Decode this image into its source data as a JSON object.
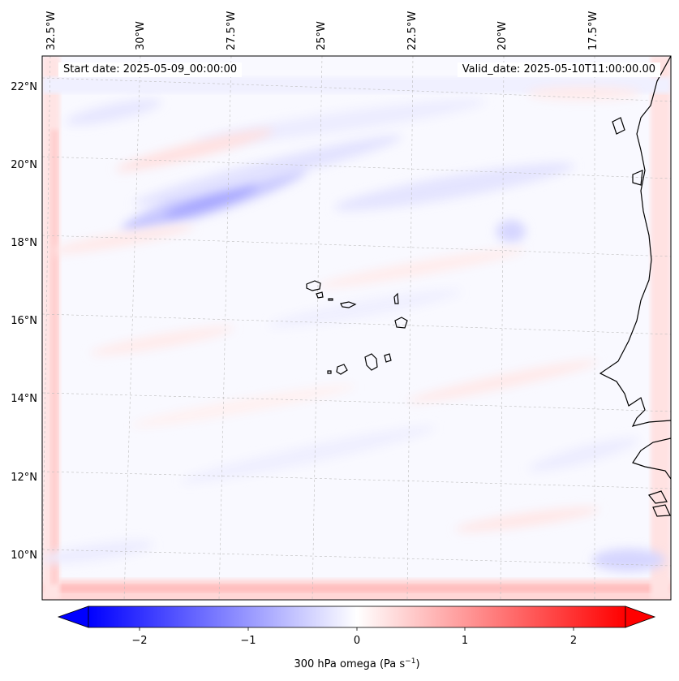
{
  "map": {
    "start_label": "Start date: 2025-05-09_00:00:00",
    "valid_label": "Valid_date: 2025-05-10T11:00:00.00",
    "lon_labels": [
      "32.5°W",
      "30°W",
      "27.5°W",
      "25°W",
      "22.5°W",
      "20°W",
      "17.5°W"
    ],
    "lat_labels": [
      "22°N",
      "20°N",
      "18°N",
      "16°N",
      "14°N",
      "12°N",
      "10°N"
    ],
    "extent": {
      "lon": [
        -32.8,
        -15.8
      ],
      "lat": [
        8.9,
        22.8
      ]
    }
  },
  "colorbar": {
    "label": "300 hPa omega (Pa s",
    "label_sup": "−1",
    "label_close": ")",
    "ticks": [
      "−2",
      "−1",
      "0",
      "1",
      "2"
    ],
    "range": [
      -2.5,
      2.5
    ],
    "colormap": "bwr",
    "extend": "both",
    "low_color": "#0000ff",
    "mid_color": "#ffffff",
    "high_color": "#ff0000"
  }
}
